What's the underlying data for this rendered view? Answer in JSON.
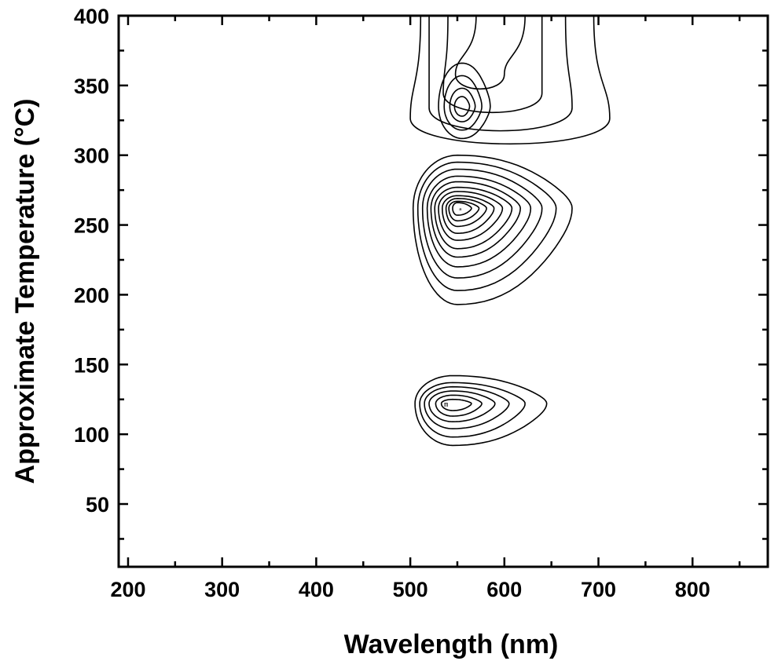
{
  "chart_data": {
    "type": "contour",
    "title": "",
    "xlabel": "Wavelength (nm)",
    "ylabel": "Approximate Temperature (°C)",
    "xlim": [
      190,
      880
    ],
    "ylim": [
      5,
      400
    ],
    "x_ticks": [
      200,
      300,
      400,
      500,
      600,
      700,
      800
    ],
    "y_ticks": [
      50,
      100,
      150,
      200,
      250,
      300,
      350,
      400
    ],
    "grid": false,
    "legend": "none",
    "line_color": "#000000",
    "features": [
      {
        "name": "peak_low",
        "center": [
          545,
          122
        ],
        "levels": [
          {
            "x": [
              505,
              645
            ],
            "y": [
              92,
              142
            ]
          },
          {
            "x": [
              510,
              622
            ],
            "y": [
              98,
              137
            ]
          },
          {
            "x": [
              515,
              605
            ],
            "y": [
              104,
              134
            ]
          },
          {
            "x": [
              520,
              590
            ],
            "y": [
              109,
              131
            ]
          },
          {
            "x": [
              527,
              576
            ],
            "y": [
              113,
              128
            ]
          },
          {
            "x": [
              533,
              565
            ],
            "y": [
              117,
              125
            ]
          }
        ]
      },
      {
        "name": "peak_mid",
        "center": [
          550,
          262
        ],
        "levels": [
          {
            "x": [
              503,
              672
            ],
            "y": [
              193,
              300
            ]
          },
          {
            "x": [
              508,
              655
            ],
            "y": [
              203,
              295
            ]
          },
          {
            "x": [
              513,
              640
            ],
            "y": [
              212,
              290
            ]
          },
          {
            "x": [
              518,
              628
            ],
            "y": [
              220,
              285
            ]
          },
          {
            "x": [
              522,
              617
            ],
            "y": [
              227,
              281
            ]
          },
          {
            "x": [
              526,
              608
            ],
            "y": [
              233,
              277
            ]
          },
          {
            "x": [
              530,
              598
            ],
            "y": [
              239,
              274
            ]
          },
          {
            "x": [
              534,
              589
            ],
            "y": [
              244,
              271
            ]
          },
          {
            "x": [
              538,
              581
            ],
            "y": [
              249,
              269
            ]
          },
          {
            "x": [
              541,
              573
            ],
            "y": [
              253,
              267
            ]
          },
          {
            "x": [
              545,
              565
            ],
            "y": [
              257,
              266
            ]
          }
        ]
      },
      {
        "name": "peak_high",
        "center": [
          555,
          335
        ],
        "levels": [
          {
            "x": [
              530,
              585
            ],
            "y": [
              312,
              366
            ]
          },
          {
            "x": [
              536,
              576
            ],
            "y": [
              318,
              357
            ]
          },
          {
            "x": [
              542,
              569
            ],
            "y": [
              324,
              348
            ]
          },
          {
            "x": [
              547,
              563
            ],
            "y": [
              328,
              342
            ]
          }
        ]
      },
      {
        "name": "upper_bands",
        "edges_at_top": [
          511,
          520,
          540,
          570,
          622,
          640,
          665,
          695
        ]
      }
    ]
  }
}
